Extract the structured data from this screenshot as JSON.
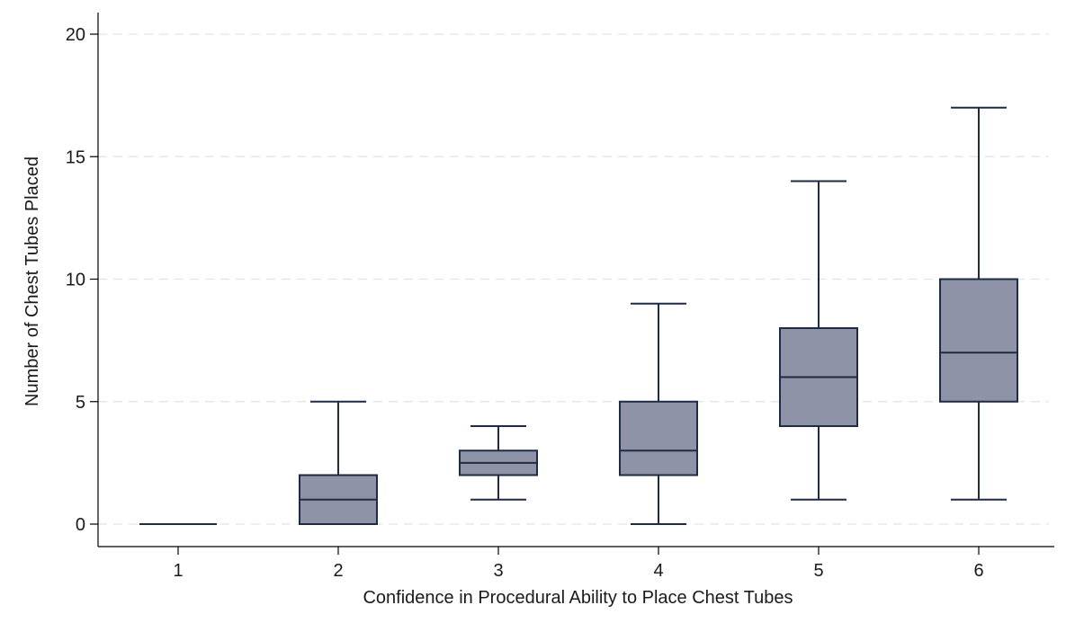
{
  "chart_data": {
    "type": "box",
    "title": "",
    "xlabel": "Confidence in Procedural Ability to Place Chest Tubes",
    "ylabel": "Number of Chest Tubes Placed",
    "categories": [
      "1",
      "2",
      "3",
      "4",
      "5",
      "6"
    ],
    "boxes": [
      {
        "category": "1",
        "min": 0,
        "q1": 0,
        "median": 0,
        "q3": 0,
        "max": 0
      },
      {
        "category": "2",
        "min": 0,
        "q1": 0,
        "median": 1,
        "q3": 2,
        "max": 5
      },
      {
        "category": "3",
        "min": 1,
        "q1": 2,
        "median": 2.5,
        "q3": 3,
        "max": 4
      },
      {
        "category": "4",
        "min": 0,
        "q1": 2,
        "median": 3,
        "q3": 5,
        "max": 9
      },
      {
        "category": "5",
        "min": 1,
        "q1": 4,
        "median": 6,
        "q3": 8,
        "max": 14
      },
      {
        "category": "6",
        "min": 1,
        "q1": 5,
        "median": 7,
        "q3": 10,
        "max": 17
      }
    ],
    "ylim": [
      0,
      20
    ],
    "yticks": [
      "0",
      "5",
      "10",
      "15",
      "20"
    ],
    "grid": "horizontal-dashed",
    "legend": "none",
    "colors": {
      "box_fill": "#8e93a8",
      "line": "#1f2a44",
      "grid": "#e3e3e3",
      "axis": "#000000"
    }
  }
}
